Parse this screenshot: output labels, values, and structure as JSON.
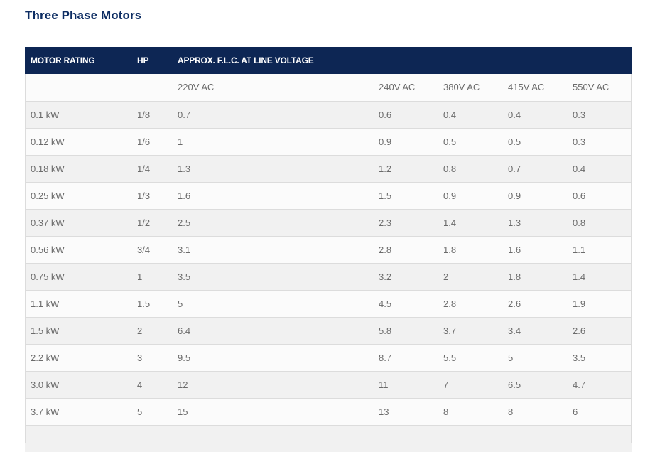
{
  "page": {
    "title": "Three Phase Motors"
  },
  "table": {
    "headers": [
      "MOTOR RATING",
      "HP",
      "APPROX. F.L.C. AT LINE VOLTAGE",
      "",
      "",
      "",
      ""
    ],
    "subheaders": [
      "",
      "",
      "220V AC",
      "240V AC",
      "380V AC",
      "415V AC",
      "550V AC"
    ],
    "rows": [
      [
        "0.1 kW",
        "1/8",
        "0.7",
        "0.6",
        "0.4",
        "0.4",
        "0.3"
      ],
      [
        "0.12 kW",
        "1/6",
        "1",
        "0.9",
        "0.5",
        "0.5",
        "0.3"
      ],
      [
        "0.18 kW",
        "1/4",
        "1.3",
        "1.2",
        "0.8",
        "0.7",
        "0.4"
      ],
      [
        "0.25 kW",
        "1/3",
        "1.6",
        "1.5",
        "0.9",
        "0.9",
        "0.6"
      ],
      [
        "0.37 kW",
        "1/2",
        "2.5",
        "2.3",
        "1.4",
        "1.3",
        "0.8"
      ],
      [
        "0.56 kW",
        "3/4",
        "3.1",
        "2.8",
        "1.8",
        "1.6",
        "1.1"
      ],
      [
        "0.75 kW",
        "1",
        "3.5",
        "3.2",
        "2",
        "1.8",
        "1.4"
      ],
      [
        "1.1 kW",
        "1.5",
        "5",
        "4.5",
        "2.8",
        "2.6",
        "1.9"
      ],
      [
        "1.5 kW",
        "2",
        "6.4",
        "5.8",
        "3.7",
        "3.4",
        "2.6"
      ],
      [
        "2.2 kW",
        "3",
        "9.5",
        "8.7",
        "5.5",
        "5",
        "3.5"
      ],
      [
        "3.0 kW",
        "4",
        "12",
        "11",
        "7",
        "6.5",
        "4.7"
      ],
      [
        "3.7 kW",
        "5",
        "15",
        "13",
        "8",
        "8",
        "6"
      ],
      [
        "",
        "",
        "",
        "",
        "",
        "",
        ""
      ]
    ]
  },
  "colors": {
    "title": "#0d2d63",
    "header_bg": "#0d2654",
    "row_odd": "#fbfbfb",
    "row_even": "#f1f1f1",
    "text": "#6b6b6b"
  }
}
